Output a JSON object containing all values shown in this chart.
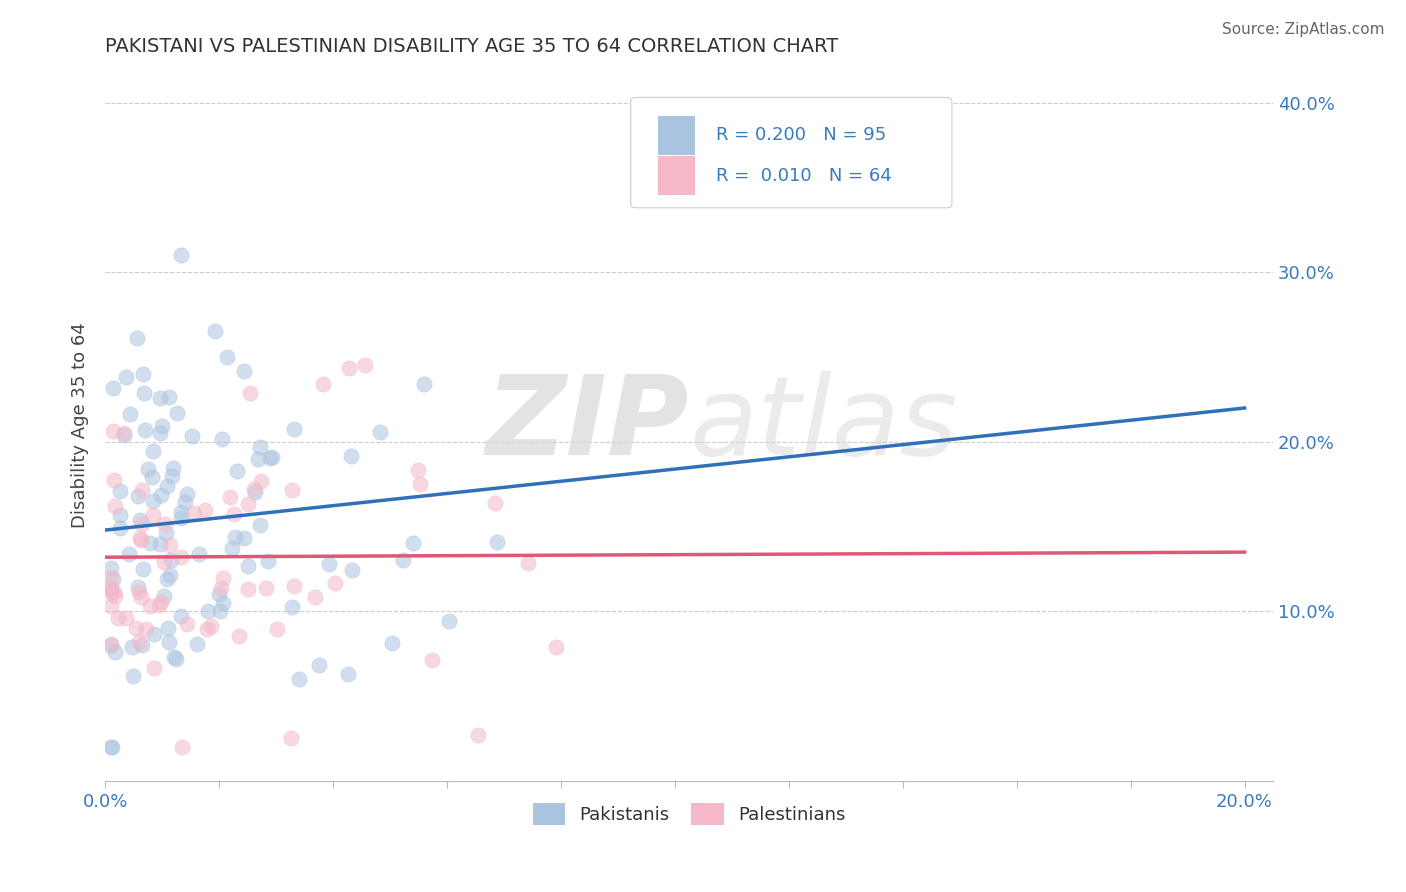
{
  "title": "PAKISTANI VS PALESTINIAN DISABILITY AGE 35 TO 64 CORRELATION CHART",
  "source": "Source: ZipAtlas.com",
  "ylabel_label": "Disability Age 35 to 64",
  "xlim": [
    0.0,
    0.205
  ],
  "ylim": [
    0.0,
    0.42
  ],
  "ytick_vals": [
    0.1,
    0.2,
    0.3,
    0.4
  ],
  "ytick_labels": [
    "10.0%",
    "20.0%",
    "30.0%",
    "40.0%"
  ],
  "xtick_vals": [
    0.0,
    0.02,
    0.04,
    0.06,
    0.08,
    0.1,
    0.12,
    0.14,
    0.16,
    0.18,
    0.2
  ],
  "xtick_labels": [
    "0.0%",
    "",
    "",
    "",
    "",
    "",
    "",
    "",
    "",
    "",
    "20.0%"
  ],
  "pakistanis_R": 0.2,
  "pakistanis_N": 95,
  "palestinians_R": 0.01,
  "palestinians_N": 64,
  "blue_color": "#aac4e0",
  "pink_color": "#f4b8c8",
  "blue_line_color": "#3070b8",
  "pink_line_color": "#e05878",
  "watermark_zip": "ZIP",
  "watermark_atlas": "atlas",
  "legend_pakistanis": "Pakistanis",
  "legend_palestinians": "Palestinians",
  "trend_blue_x0": 0.0,
  "trend_blue_y0": 0.148,
  "trend_blue_x1": 0.2,
  "trend_blue_y1": 0.22,
  "trend_pink_x0": 0.0,
  "trend_pink_y0": 0.132,
  "trend_pink_x1": 0.2,
  "trend_pink_y1": 0.135
}
